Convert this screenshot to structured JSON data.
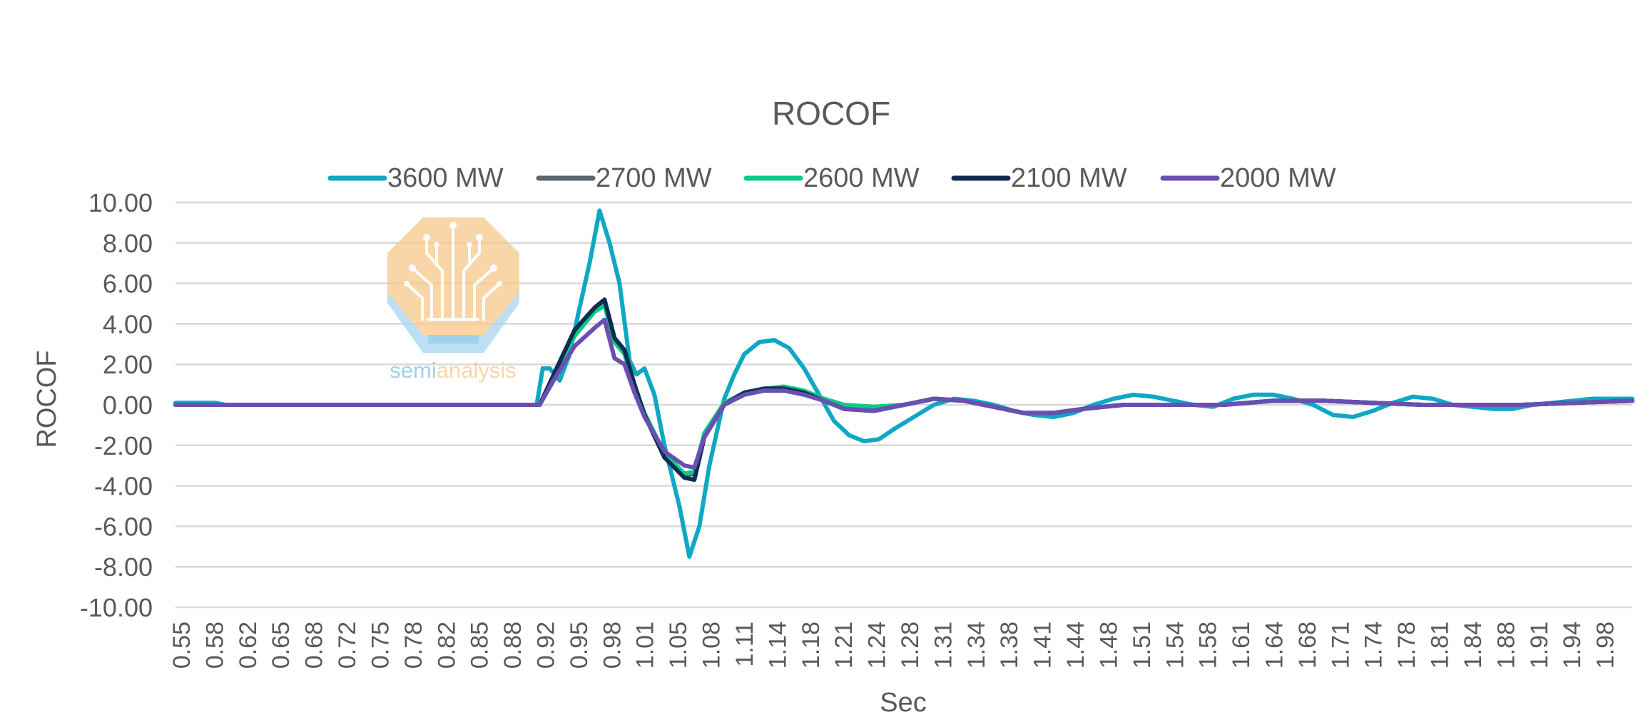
{
  "chart_data": {
    "type": "line",
    "title": "ROCOF",
    "xlabel": "Sec",
    "ylabel": "ROCOF",
    "ylim": [
      -10,
      10
    ],
    "yticks": [
      "10.00",
      "8.00",
      "6.00",
      "4.00",
      "2.00",
      "0.00",
      "-2.00",
      "-4.00",
      "-6.00",
      "-8.00",
      "-10.00"
    ],
    "xlim": [
      0.55,
      2.01
    ],
    "xticks": [
      "0.55",
      "0.58",
      "0.62",
      "0.65",
      "0.68",
      "0.72",
      "0.75",
      "0.78",
      "0.82",
      "0.85",
      "0.88",
      "0.92",
      "0.95",
      "0.98",
      "1.01",
      "1.05",
      "1.08",
      "1.11",
      "1.14",
      "1.18",
      "1.21",
      "1.24",
      "1.28",
      "1.31",
      "1.34",
      "1.38",
      "1.41",
      "1.44",
      "1.48",
      "1.51",
      "1.54",
      "1.58",
      "1.61",
      "1.64",
      "1.68",
      "1.71",
      "1.74",
      "1.78",
      "1.81",
      "1.84",
      "1.88",
      "1.91",
      "1.94",
      "1.98"
    ],
    "grid": true,
    "legend_position": "top",
    "series": [
      {
        "name": "3600 MW",
        "color": "#0FA8C4",
        "x": [
          0.55,
          0.59,
          0.6,
          0.912,
          0.918,
          0.925,
          0.935,
          0.945,
          0.955,
          0.965,
          0.975,
          0.985,
          0.995,
          1.005,
          1.012,
          1.02,
          1.03,
          1.04,
          1.055,
          1.065,
          1.075,
          1.085,
          1.1,
          1.11,
          1.12,
          1.135,
          1.15,
          1.165,
          1.18,
          1.195,
          1.21,
          1.225,
          1.24,
          1.255,
          1.27,
          1.29,
          1.31,
          1.33,
          1.35,
          1.37,
          1.39,
          1.41,
          1.43,
          1.45,
          1.47,
          1.49,
          1.51,
          1.53,
          1.55,
          1.57,
          1.59,
          1.61,
          1.63,
          1.65,
          1.67,
          1.69,
          1.71,
          1.73,
          1.75,
          1.77,
          1.79,
          1.81,
          1.83,
          1.85,
          1.87,
          1.89,
          1.91,
          1.93,
          1.95,
          1.97,
          1.99,
          2.01
        ],
        "values": [
          0.1,
          0.1,
          0.0,
          0.0,
          1.8,
          1.8,
          1.2,
          2.5,
          4.8,
          7.0,
          9.6,
          8.0,
          6.0,
          2.2,
          1.5,
          1.8,
          0.5,
          -2.0,
          -5.0,
          -7.5,
          -6.0,
          -3.0,
          0.3,
          1.5,
          2.5,
          3.1,
          3.2,
          2.8,
          1.8,
          0.5,
          -0.8,
          -1.5,
          -1.8,
          -1.7,
          -1.2,
          -0.6,
          0.0,
          0.3,
          0.2,
          0.0,
          -0.3,
          -0.5,
          -0.6,
          -0.4,
          0.0,
          0.3,
          0.5,
          0.4,
          0.2,
          0.0,
          -0.1,
          0.3,
          0.5,
          0.5,
          0.3,
          0.0,
          -0.5,
          -0.6,
          -0.3,
          0.1,
          0.4,
          0.3,
          0.0,
          -0.1,
          -0.2,
          -0.2,
          0.0,
          0.1,
          0.2,
          0.3,
          0.3,
          0.3
        ]
      },
      {
        "name": "2700 MW",
        "color": "#5B6670",
        "x": [
          0.55,
          0.915,
          0.93,
          0.95,
          0.97,
          0.98,
          0.99,
          1.0,
          1.01,
          1.02,
          1.04,
          1.06,
          1.07,
          1.08,
          1.1,
          1.12,
          1.14,
          1.16,
          1.18,
          1.2,
          1.22,
          1.25,
          1.28,
          1.31,
          1.34,
          1.37,
          1.4,
          1.43,
          1.46,
          1.5,
          1.55,
          1.6,
          1.65,
          1.7,
          1.75,
          1.8,
          1.85,
          1.9,
          1.95,
          2.01
        ],
        "values": [
          0.0,
          0.0,
          1.5,
          3.5,
          4.7,
          5.0,
          3.2,
          2.6,
          1.0,
          -0.5,
          -2.5,
          -3.5,
          -3.4,
          -1.5,
          0.0,
          0.6,
          0.8,
          0.8,
          0.6,
          0.3,
          -0.1,
          -0.2,
          0.0,
          0.3,
          0.2,
          -0.1,
          -0.4,
          -0.4,
          -0.2,
          0.0,
          0.0,
          0.0,
          0.2,
          0.2,
          0.1,
          0.0,
          0.0,
          0.0,
          0.1,
          0.2
        ]
      },
      {
        "name": "2600 MW",
        "color": "#0CCB86",
        "x": [
          0.55,
          0.915,
          0.93,
          0.95,
          0.97,
          0.98,
          0.99,
          1.0,
          1.01,
          1.02,
          1.04,
          1.06,
          1.07,
          1.08,
          1.1,
          1.12,
          1.14,
          1.16,
          1.18,
          1.2,
          1.22,
          1.25,
          1.28,
          1.31,
          1.34,
          1.37,
          1.4,
          1.43,
          1.46,
          1.5,
          1.55,
          1.6,
          1.65,
          1.7,
          1.75,
          1.8,
          1.85,
          1.9,
          1.95,
          2.01
        ],
        "values": [
          0.0,
          0.0,
          1.4,
          3.4,
          4.6,
          4.9,
          3.1,
          2.5,
          0.9,
          -0.4,
          -2.4,
          -3.4,
          -3.3,
          -1.4,
          0.1,
          0.6,
          0.8,
          0.9,
          0.7,
          0.3,
          0.0,
          -0.1,
          0.0,
          0.3,
          0.2,
          -0.1,
          -0.4,
          -0.4,
          -0.2,
          0.0,
          0.0,
          0.0,
          0.2,
          0.2,
          0.1,
          0.0,
          0.0,
          0.0,
          0.1,
          0.2
        ]
      },
      {
        "name": "2100 MW",
        "color": "#0E2D52",
        "x": [
          0.55,
          0.915,
          0.93,
          0.95,
          0.97,
          0.98,
          0.99,
          1.0,
          1.01,
          1.02,
          1.04,
          1.06,
          1.07,
          1.08,
          1.1,
          1.12,
          1.14,
          1.16,
          1.18,
          1.2,
          1.22,
          1.25,
          1.28,
          1.31,
          1.34,
          1.37,
          1.4,
          1.43,
          1.46,
          1.5,
          1.55,
          1.6,
          1.65,
          1.7,
          1.75,
          1.8,
          1.85,
          1.9,
          1.95,
          2.01
        ],
        "values": [
          0.0,
          0.0,
          1.6,
          3.7,
          4.8,
          5.2,
          3.3,
          2.7,
          1.0,
          -0.5,
          -2.6,
          -3.6,
          -3.7,
          -1.6,
          0.0,
          0.6,
          0.8,
          0.8,
          0.6,
          0.2,
          -0.2,
          -0.3,
          0.0,
          0.3,
          0.2,
          -0.1,
          -0.4,
          -0.4,
          -0.2,
          0.0,
          0.0,
          0.0,
          0.2,
          0.2,
          0.1,
          0.0,
          0.0,
          0.0,
          0.1,
          0.2
        ]
      },
      {
        "name": "2000 MW",
        "color": "#6A4FB3",
        "x": [
          0.55,
          0.915,
          0.93,
          0.95,
          0.97,
          0.98,
          0.99,
          1.0,
          1.01,
          1.02,
          1.04,
          1.06,
          1.07,
          1.08,
          1.1,
          1.12,
          1.14,
          1.16,
          1.18,
          1.2,
          1.22,
          1.25,
          1.28,
          1.31,
          1.34,
          1.37,
          1.4,
          1.43,
          1.46,
          1.5,
          1.55,
          1.6,
          1.65,
          1.7,
          1.75,
          1.8,
          1.85,
          1.9,
          1.95,
          2.01
        ],
        "values": [
          0.0,
          0.0,
          1.3,
          2.9,
          3.8,
          4.2,
          2.3,
          2.0,
          0.6,
          -0.6,
          -2.3,
          -3.0,
          -3.1,
          -1.6,
          0.0,
          0.5,
          0.7,
          0.7,
          0.5,
          0.2,
          -0.2,
          -0.3,
          0.0,
          0.3,
          0.2,
          -0.1,
          -0.4,
          -0.4,
          -0.2,
          0.0,
          0.0,
          0.0,
          0.2,
          0.2,
          0.1,
          0.0,
          0.0,
          0.0,
          0.1,
          0.2
        ]
      }
    ]
  },
  "watermark": {
    "wordmark_part1": "semi",
    "wordmark_part2": "analysis",
    "part1_color": "#7EC3E6",
    "part2_color": "#F6C98A"
  }
}
